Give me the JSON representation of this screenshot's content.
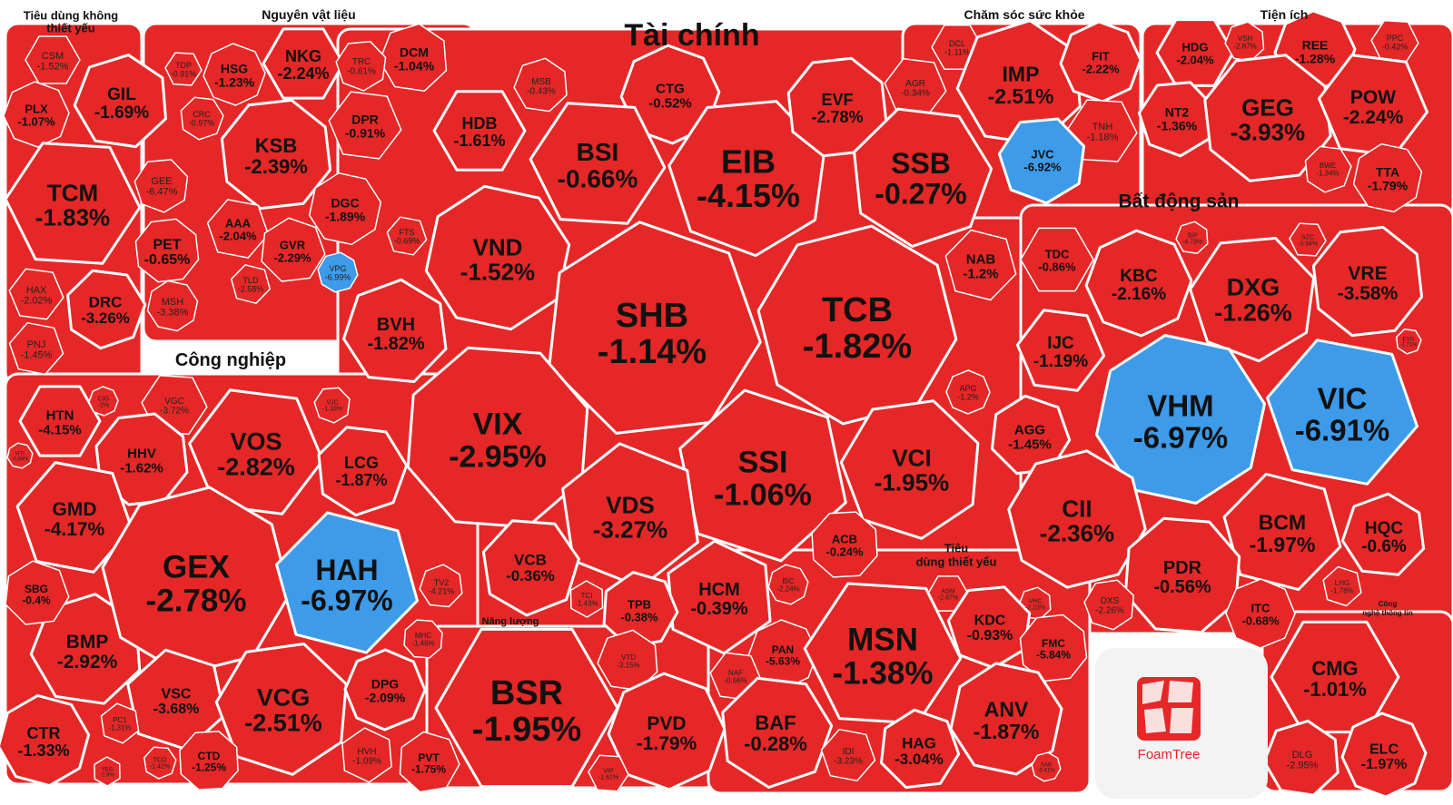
{
  "chart_data": {
    "type": "voronoi-treemap",
    "colors": {
      "down": "#e52727",
      "ceiling": "#3d9be9",
      "group_bg": "#f4f4f4",
      "border": "#ffffff"
    },
    "groups": [
      {
        "name": "Tiêu dùng không thiết yếu",
        "tickers": [
          {
            "t": "CSM",
            "v": "-1.52%"
          },
          {
            "t": "GIL",
            "v": "-1.69%"
          },
          {
            "t": "PLX",
            "v": "-1.07%"
          },
          {
            "t": "TCM",
            "v": "-1.83%"
          },
          {
            "t": "GEE",
            "v": "-6.47%"
          },
          {
            "t": "PET",
            "v": "-0.65%"
          },
          {
            "t": "HAX",
            "v": "-2.02%"
          },
          {
            "t": "DRC",
            "v": "-3.26%"
          },
          {
            "t": "MSH",
            "v": "-3.38%"
          },
          {
            "t": "PNJ",
            "v": "-1.45%"
          }
        ]
      },
      {
        "name": "Nguyên vật liệu",
        "tickers": [
          {
            "t": "NKG",
            "v": "-2.24%"
          },
          {
            "t": "DCM",
            "v": "-1.04%"
          },
          {
            "t": "HSG",
            "v": "-1.23%"
          },
          {
            "t": "TDP",
            "v": "-0.91%"
          },
          {
            "t": "TRC",
            "v": "-0.61%"
          },
          {
            "t": "KSB",
            "v": "-2.39%"
          },
          {
            "t": "DPR",
            "v": "-0.91%"
          },
          {
            "t": "CRC",
            "v": "-0.97%"
          },
          {
            "t": "DGC",
            "v": "-1.89%"
          },
          {
            "t": "AAA",
            "v": "-2.04%"
          },
          {
            "t": "GVR",
            "v": "-2.29%"
          },
          {
            "t": "VPG",
            "v": "-6.99%"
          },
          {
            "t": "TLD",
            "v": "-2.58%"
          }
        ]
      },
      {
        "name": "Tài chính",
        "tickers": [
          {
            "t": "HDB",
            "v": "-1.61%"
          },
          {
            "t": "MSB",
            "v": "-0.43%"
          },
          {
            "t": "CTG",
            "v": "-0.52%"
          },
          {
            "t": "BSI",
            "v": "-0.66%"
          },
          {
            "t": "EIB",
            "v": "-4.15%"
          },
          {
            "t": "EVF",
            "v": "-2.78%"
          },
          {
            "t": "AGR",
            "v": "-0.34%"
          },
          {
            "t": "SSB",
            "v": "-0.27%"
          },
          {
            "t": "VND",
            "v": "-1.52%"
          },
          {
            "t": "FTS",
            "v": "-0.69%"
          },
          {
            "t": "SHB",
            "v": "-1.14%"
          },
          {
            "t": "TCB",
            "v": "-1.82%"
          },
          {
            "t": "NAB",
            "v": "-1.2%"
          },
          {
            "t": "BVH",
            "v": "-1.82%"
          },
          {
            "t": "VIX",
            "v": "-2.95%"
          },
          {
            "t": "SSI",
            "v": "-1.06%"
          },
          {
            "t": "VCI",
            "v": "-1.95%"
          },
          {
            "t": "APG",
            "v": "-1.2%"
          },
          {
            "t": "VDS",
            "v": "-3.27%"
          },
          {
            "t": "VCB",
            "v": "-0.36%"
          },
          {
            "t": "ACB",
            "v": "-0.24%"
          },
          {
            "t": "HCM",
            "v": "-0.39%"
          },
          {
            "t": "TPB",
            "v": "-0.38%"
          },
          {
            "t": "BIC",
            "v": "-2.24%"
          },
          {
            "t": "TCI",
            "v": "-1.43%"
          }
        ]
      },
      {
        "name": "Chăm sóc sức khỏe",
        "tickers": [
          {
            "t": "DCL",
            "v": "-1.11%"
          },
          {
            "t": "IMP",
            "v": "-2.51%"
          },
          {
            "t": "FIT",
            "v": "-2.22%"
          },
          {
            "t": "TNH",
            "v": "-1.18%"
          },
          {
            "t": "JVC",
            "v": "-6.92%"
          }
        ]
      },
      {
        "name": "Tiện ích",
        "tickers": [
          {
            "t": "HDG",
            "v": "-2.04%"
          },
          {
            "t": "VSH",
            "v": "-2.87%"
          },
          {
            "t": "REE",
            "v": "-1.28%"
          },
          {
            "t": "PPC",
            "v": "-0.42%"
          },
          {
            "t": "NT2",
            "v": "-1.36%"
          },
          {
            "t": "GEG",
            "v": "-3.93%"
          },
          {
            "t": "POW",
            "v": "-2.24%"
          },
          {
            "t": "BWE",
            "v": "-1.34%"
          },
          {
            "t": "TTA",
            "v": "-1.79%"
          }
        ]
      },
      {
        "name": "Bất động sản",
        "tickers": [
          {
            "t": "TDC",
            "v": "-0.86%"
          },
          {
            "t": "SIP",
            "v": "-4.73%"
          },
          {
            "t": "KBC",
            "v": "-2.16%"
          },
          {
            "t": "SZC",
            "v": "-3.94%"
          },
          {
            "t": "DXG",
            "v": "-1.26%"
          },
          {
            "t": "VRE",
            "v": "-3.58%"
          },
          {
            "t": "IJC",
            "v": "-1.19%"
          },
          {
            "t": "EVG",
            "v": "-1.71%"
          },
          {
            "t": "VHM",
            "v": "-6.97%"
          },
          {
            "t": "VIC",
            "v": "-6.91%"
          },
          {
            "t": "AGG",
            "v": "-1.45%"
          },
          {
            "t": "CII",
            "v": "-2.36%"
          },
          {
            "t": "BCM",
            "v": "-1.97%"
          },
          {
            "t": "HQC",
            "v": "-0.6%"
          },
          {
            "t": "PDR",
            "v": "-0.56%"
          },
          {
            "t": "LHG",
            "v": "-1.78%"
          },
          {
            "t": "DXS",
            "v": "-2.26%"
          },
          {
            "t": "ITC",
            "v": "-0.68%"
          }
        ]
      },
      {
        "name": "Công nghiệp",
        "tickers": [
          {
            "t": "HTN",
            "v": "-4.15%"
          },
          {
            "t": "BMP",
            "v": "-2.92%"
          },
          {
            "t": "CIG",
            "v": "-2%"
          },
          {
            "t": "VGC",
            "v": "-3.72%"
          },
          {
            "t": "VJC",
            "v": "-1.33%"
          },
          {
            "t": "HHV",
            "v": "-1.62%"
          },
          {
            "t": "VOS",
            "v": "-2.82%"
          },
          {
            "t": "LCG",
            "v": "-1.87%"
          },
          {
            "t": "HTI",
            "v": "-0.84%"
          },
          {
            "t": "GMD",
            "v": "-4.17%"
          },
          {
            "t": "SBG",
            "v": "-0.4%"
          },
          {
            "t": "GEX",
            "v": "-2.78%"
          },
          {
            "t": "HAH",
            "v": "-6.97%"
          },
          {
            "t": "TV2",
            "v": "-4.21%"
          },
          {
            "t": "MHC",
            "v": "-1.46%"
          },
          {
            "t": "VSC",
            "v": "-3.68%"
          },
          {
            "t": "VCG",
            "v": "-2.51%"
          },
          {
            "t": "DPG",
            "v": "-2.09%"
          },
          {
            "t": "PC1",
            "v": "-1.31%"
          },
          {
            "t": "TCO",
            "v": "-1.42%"
          },
          {
            "t": "CTD",
            "v": "-1.25%"
          },
          {
            "t": "HVH",
            "v": "-1.09%"
          },
          {
            "t": "PVT",
            "v": "-1.75%"
          },
          {
            "t": "CTR",
            "v": "-1.33%"
          },
          {
            "t": "YEG",
            "v": "-2.9%"
          }
        ]
      },
      {
        "name": "Năng lượng",
        "tickers": [
          {
            "t": "BSR",
            "v": "-1.95%"
          },
          {
            "t": "VTD",
            "v": "-3.15%"
          },
          {
            "t": "PVD",
            "v": "-1.79%"
          },
          {
            "t": "VIP",
            "v": "-1.61%"
          }
        ]
      },
      {
        "name": "Tiêu dùng thiết yếu",
        "tickers": [
          {
            "t": "ASM",
            "v": "-2.87%"
          },
          {
            "t": "VHC",
            "v": "-2.23%"
          },
          {
            "t": "PAN",
            "v": "-5.63%"
          },
          {
            "t": "MSN",
            "v": "-1.38%"
          },
          {
            "t": "KDC",
            "v": "-0.93%"
          },
          {
            "t": "FMC",
            "v": "-5.84%"
          },
          {
            "t": "NAF",
            "v": "-0.66%"
          },
          {
            "t": "BAF",
            "v": "-0.28%"
          },
          {
            "t": "ANV",
            "v": "-1.87%"
          },
          {
            "t": "IDI",
            "v": "-3.23%"
          },
          {
            "t": "HAG",
            "v": "-3.04%"
          },
          {
            "t": "SAB",
            "v": "-0.41%"
          }
        ]
      },
      {
        "name": "Công nghệ thông tin",
        "tickers": [
          {
            "t": "CMG",
            "v": "-1.01%"
          },
          {
            "t": "DLG",
            "v": "-2.95%"
          },
          {
            "t": "ELC",
            "v": "-1.97%"
          }
        ]
      }
    ],
    "ceiling_tickers": [
      "JVC",
      "VPG",
      "VHM",
      "VIC",
      "HAH"
    ]
  },
  "brand": {
    "name": "FoamTree"
  }
}
